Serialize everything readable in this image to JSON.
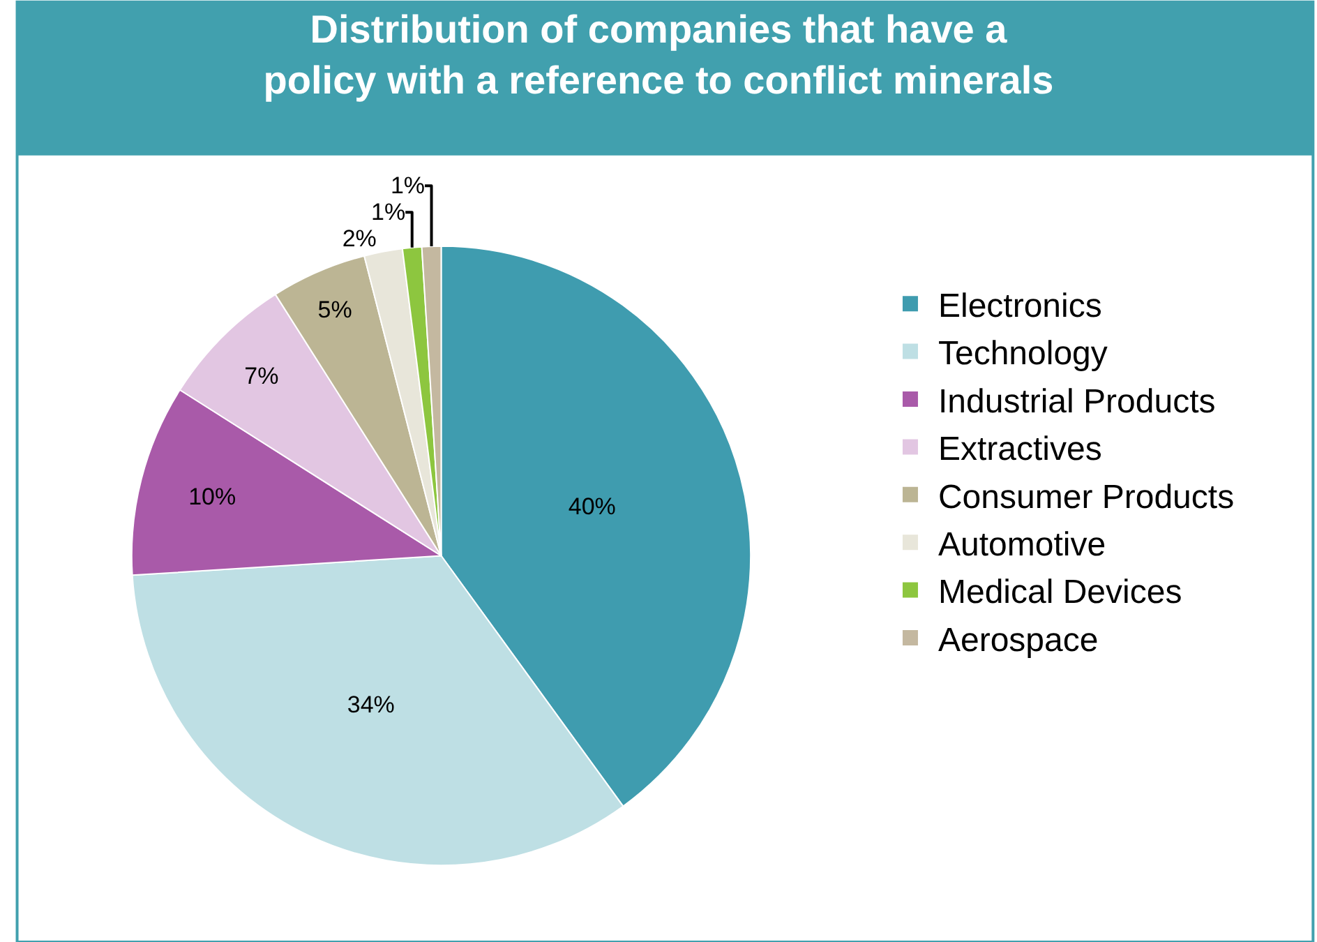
{
  "chart_data": {
    "type": "pie",
    "title": "Distribution of companies that have a policy with a reference to conflict minerals",
    "categories": [
      "Electronics",
      "Technology",
      "Industrial Products",
      "Extractives",
      "Consumer Products",
      "Automotive",
      "Medical Devices",
      "Aerospace"
    ],
    "values": [
      40,
      34,
      10,
      7,
      5,
      2,
      1,
      1
    ],
    "colors": [
      "#3f9caf",
      "#bedfe4",
      "#a95aa9",
      "#e2c6e2",
      "#bcb594",
      "#e8e6da",
      "#8dc63f",
      "#c4b8a0"
    ],
    "value_labels": [
      "40%",
      "34%",
      "10%",
      "7%",
      "5%",
      "2%",
      "1%",
      "1%"
    ],
    "legend": "right"
  }
}
